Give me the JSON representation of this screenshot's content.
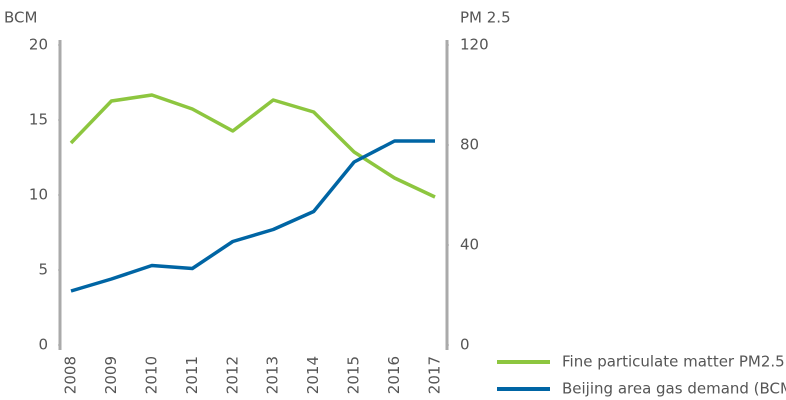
{
  "chart_data": {
    "type": "line",
    "y_label": "BCM",
    "y2_label": "PM 2.5",
    "categories": [
      "2008",
      "2009",
      "2010",
      "2011",
      "2012",
      "2013",
      "2014",
      "2015",
      "2016",
      "2017"
    ],
    "series": [
      {
        "name": "Fine particulate matter PM2.5",
        "color": "#8dc63f",
        "axis": "y2",
        "values": [
          80.8,
          97.6,
          100,
          94.4,
          85.6,
          98,
          93.2,
          77.2,
          66.8,
          59.2
        ]
      },
      {
        "name": "Beijing area gas demand (BCM)",
        "color": "#0065a4",
        "values": [
          3.6,
          4.4,
          5.3,
          5.1,
          6.9,
          7.7,
          8.9,
          12.2,
          13.6,
          13.6
        ]
      }
    ],
    "ylim": [
      0,
      20
    ],
    "yticks": [
      0,
      5,
      10,
      15,
      20
    ],
    "y2lim": [
      0,
      120
    ],
    "y2ticks": [
      0,
      40,
      80,
      120
    ],
    "grid": false,
    "legend": "bottom-right"
  }
}
